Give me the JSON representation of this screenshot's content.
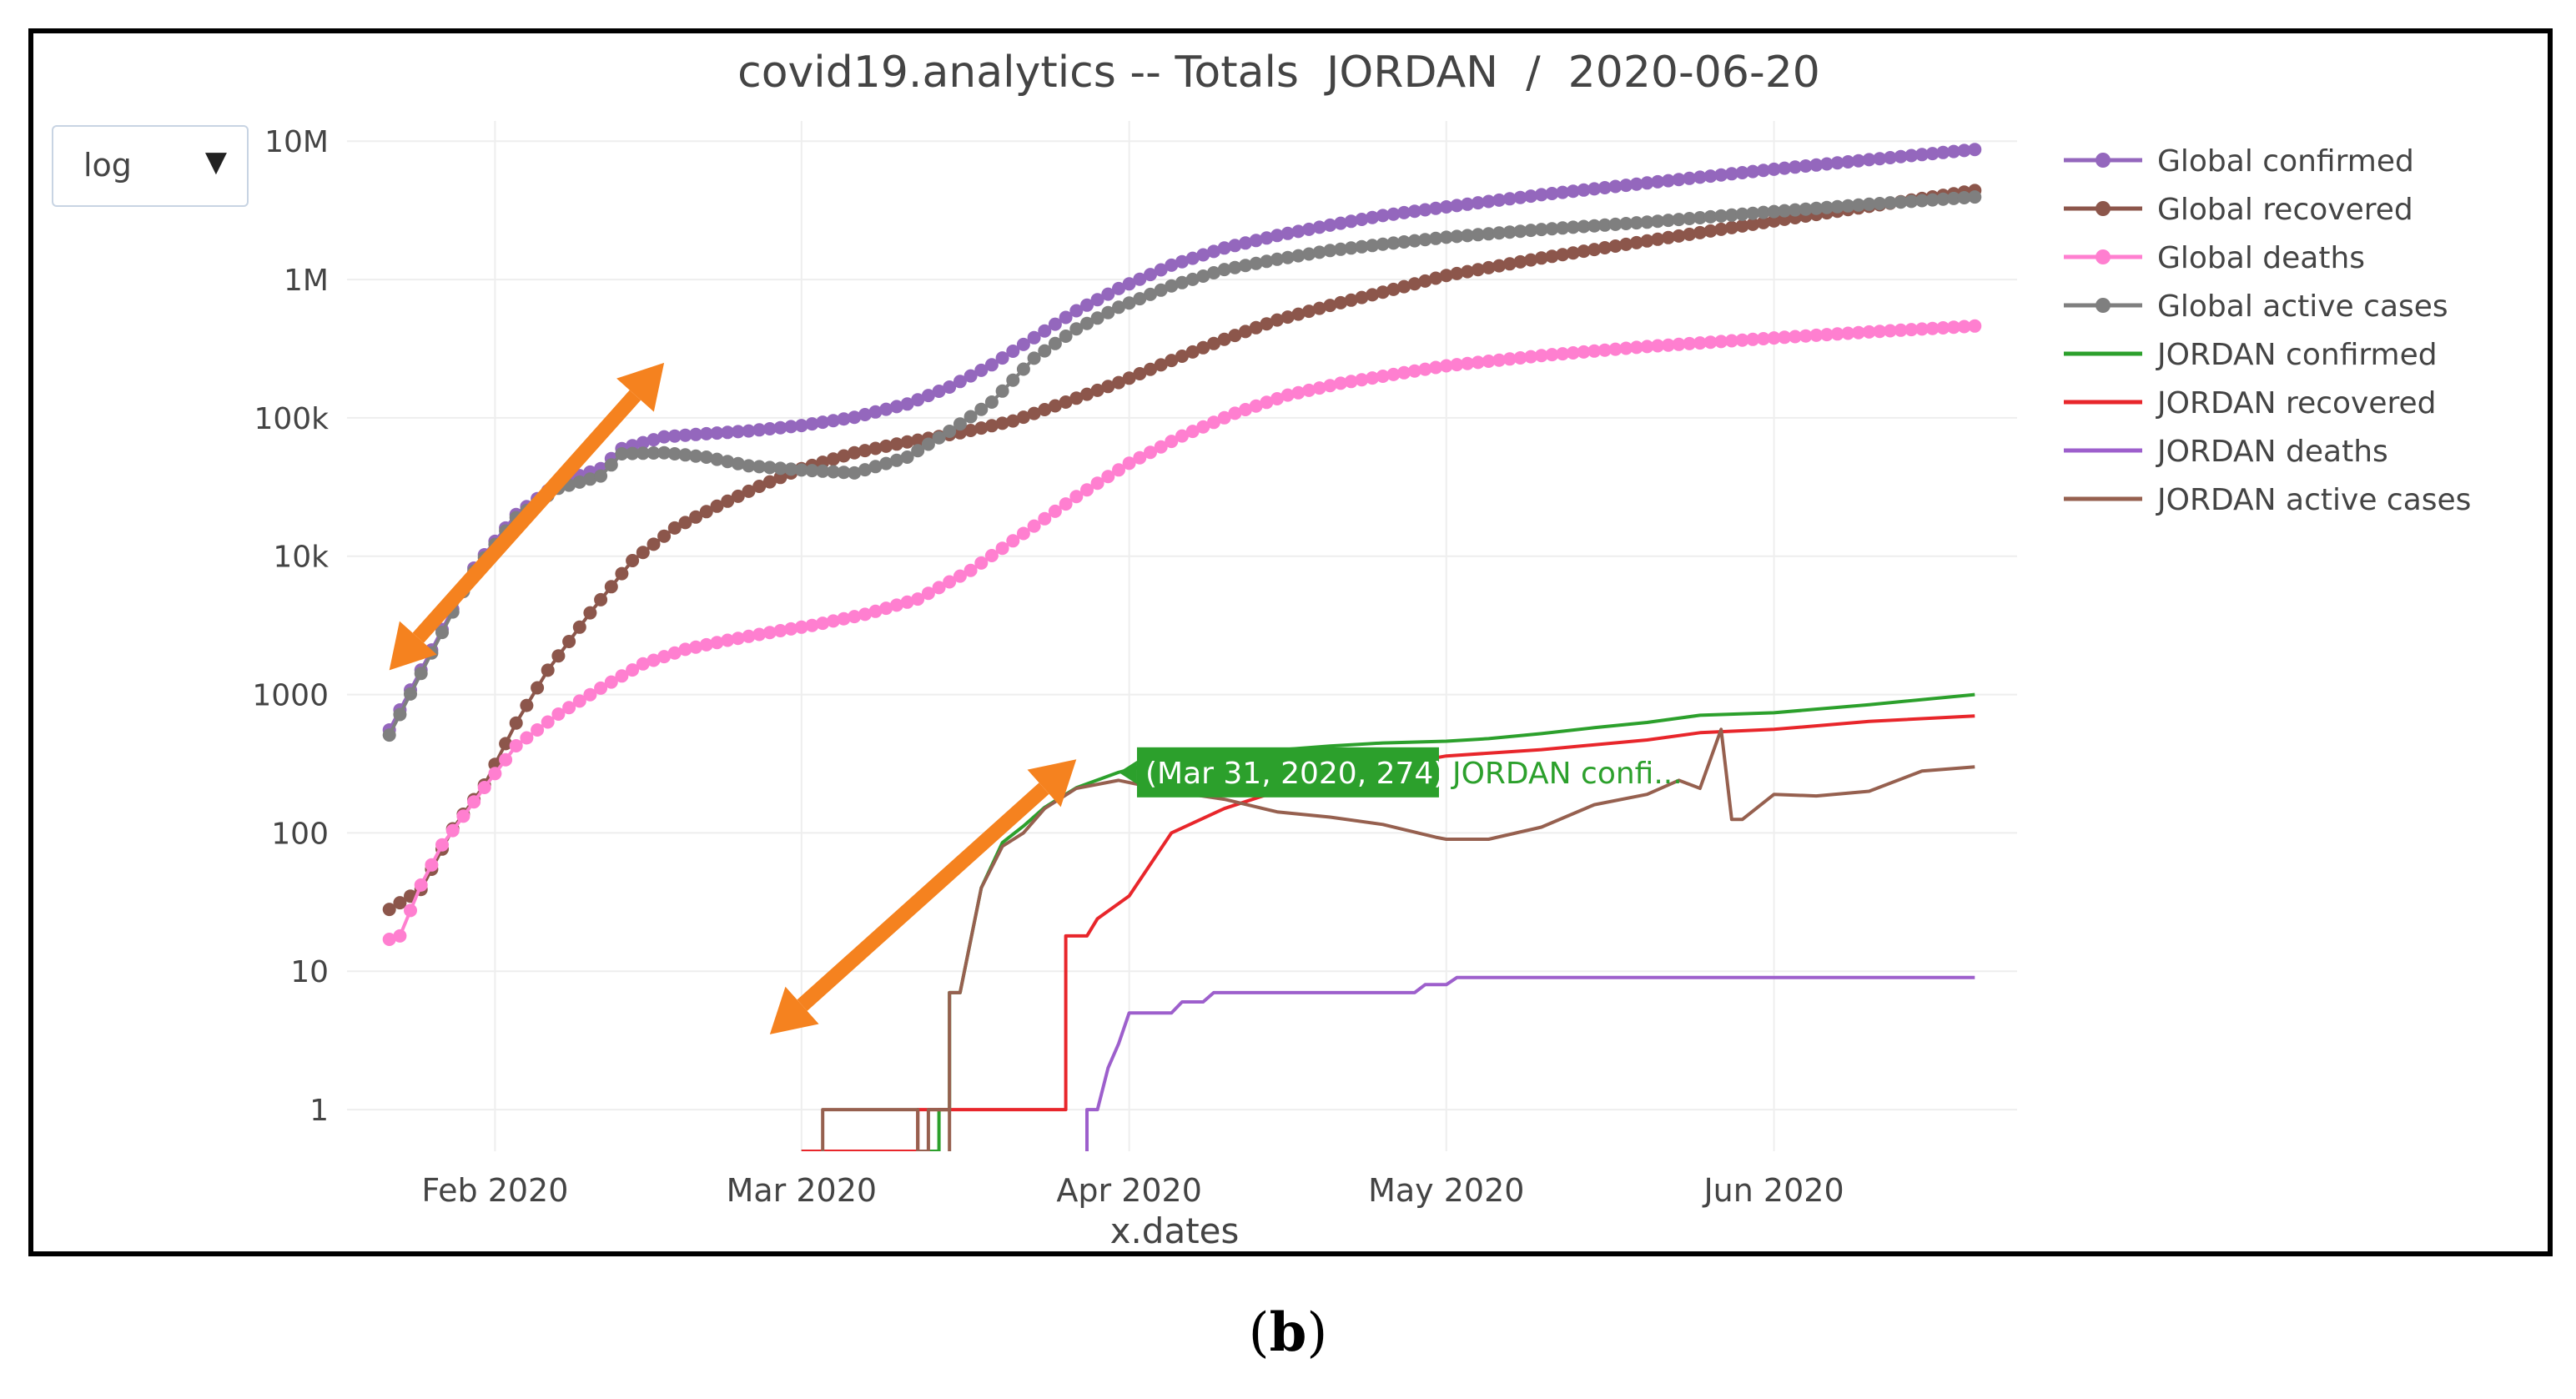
{
  "figure_label_open": "(",
  "figure_label": "b",
  "figure_label_close": ")",
  "scale_selector": {
    "selected": "log",
    "arrow": "▼"
  },
  "chart_data": {
    "type": "line",
    "title": "covid19.analytics -- Totals  JORDAN  /  2020-06-20",
    "xlabel": "x.dates",
    "ylabel": "",
    "yscale": "log",
    "grid": true,
    "legend_position": "top-right",
    "x_domain": [
      "2020-01-18",
      "2020-06-24"
    ],
    "y_range": [
      0.5,
      14000000
    ],
    "x_ticks": [
      {
        "date": "2020-02-01",
        "label": "Feb 2020"
      },
      {
        "date": "2020-03-01",
        "label": "Mar 2020"
      },
      {
        "date": "2020-04-01",
        "label": "Apr 2020"
      },
      {
        "date": "2020-05-01",
        "label": "May 2020"
      },
      {
        "date": "2020-06-01",
        "label": "Jun 2020"
      }
    ],
    "y_ticks": [
      {
        "value": 1,
        "label": "1"
      },
      {
        "value": 10,
        "label": "10"
      },
      {
        "value": 100,
        "label": "100"
      },
      {
        "value": 1000,
        "label": "1000"
      },
      {
        "value": 10000,
        "label": "10k"
      },
      {
        "value": 100000,
        "label": "100k"
      },
      {
        "value": 1000000,
        "label": "1M"
      },
      {
        "value": 10000000,
        "label": "10M"
      }
    ],
    "series": [
      {
        "name": "Global confirmed",
        "color": "#9467bd",
        "markers": true,
        "points": [
          [
            "2020-01-22",
            555
          ],
          [
            "2020-01-26",
            2100
          ],
          [
            "2020-01-30",
            8200
          ],
          [
            "2020-02-03",
            20000
          ],
          [
            "2020-02-07",
            34000
          ],
          [
            "2020-02-11",
            43000
          ],
          [
            "2020-02-13",
            60000
          ],
          [
            "2020-02-17",
            73000
          ],
          [
            "2020-02-21",
            76800
          ],
          [
            "2020-02-25",
            80400
          ],
          [
            "2020-03-01",
            88000
          ],
          [
            "2020-03-06",
            101000
          ],
          [
            "2020-03-11",
            126000
          ],
          [
            "2020-03-15",
            167000
          ],
          [
            "2020-03-19",
            242000
          ],
          [
            "2020-03-23",
            380000
          ],
          [
            "2020-03-27",
            595000
          ],
          [
            "2020-03-31",
            860000
          ],
          [
            "2020-04-05",
            1270000
          ],
          [
            "2020-04-10",
            1690000
          ],
          [
            "2020-04-15",
            2080000
          ],
          [
            "2020-04-20",
            2470000
          ],
          [
            "2020-04-25",
            2900000
          ],
          [
            "2020-05-01",
            3350000
          ],
          [
            "2020-05-10",
            4100000
          ],
          [
            "2020-05-20",
            4990000
          ],
          [
            "2020-06-01",
            6270000
          ],
          [
            "2020-06-10",
            7350000
          ],
          [
            "2020-06-20",
            8710000
          ]
        ]
      },
      {
        "name": "Global recovered",
        "color": "#8c564b",
        "markers": true,
        "points": [
          [
            "2020-01-22",
            28
          ],
          [
            "2020-01-25",
            39
          ],
          [
            "2020-01-28",
            107
          ],
          [
            "2020-01-31",
            222
          ],
          [
            "2020-02-03",
            623
          ],
          [
            "2020-02-06",
            1500
          ],
          [
            "2020-02-10",
            3900
          ],
          [
            "2020-02-14",
            9300
          ],
          [
            "2020-02-18",
            16000
          ],
          [
            "2020-02-22",
            23000
          ],
          [
            "2020-02-26",
            32000
          ],
          [
            "2020-03-01",
            43000
          ],
          [
            "2020-03-06",
            56000
          ],
          [
            "2020-03-11",
            67000
          ],
          [
            "2020-03-16",
            78000
          ],
          [
            "2020-03-21",
            95000
          ],
          [
            "2020-03-26",
            130000
          ],
          [
            "2020-03-31",
            180000
          ],
          [
            "2020-04-05",
            260000
          ],
          [
            "2020-04-10",
            370000
          ],
          [
            "2020-04-15",
            510000
          ],
          [
            "2020-04-20",
            650000
          ],
          [
            "2020-04-25",
            810000
          ],
          [
            "2020-05-01",
            1070000
          ],
          [
            "2020-05-10",
            1430000
          ],
          [
            "2020-05-20",
            1900000
          ],
          [
            "2020-06-01",
            2650000
          ],
          [
            "2020-06-10",
            3380000
          ],
          [
            "2020-06-20",
            4400000
          ]
        ]
      },
      {
        "name": "Global deaths",
        "color": "#ff7fd0",
        "markers": true,
        "points": [
          [
            "2020-01-22",
            17
          ],
          [
            "2020-01-23",
            18
          ],
          [
            "2020-01-25",
            42
          ],
          [
            "2020-01-27",
            82
          ],
          [
            "2020-01-29",
            132
          ],
          [
            "2020-01-31",
            213
          ],
          [
            "2020-02-03",
            426
          ],
          [
            "2020-02-07",
            722
          ],
          [
            "2020-02-11",
            1113
          ],
          [
            "2020-02-15",
            1666
          ],
          [
            "2020-02-19",
            2122
          ],
          [
            "2020-02-23",
            2469
          ],
          [
            "2020-02-27",
            2810
          ],
          [
            "2020-03-02",
            3160
          ],
          [
            "2020-03-07",
            3800
          ],
          [
            "2020-03-12",
            4900
          ],
          [
            "2020-03-17",
            7900
          ],
          [
            "2020-03-22",
            14600
          ],
          [
            "2020-03-27",
            27000
          ],
          [
            "2020-04-01",
            47000
          ],
          [
            "2020-04-06",
            74000
          ],
          [
            "2020-04-11",
            108000
          ],
          [
            "2020-04-16",
            146000
          ],
          [
            "2020-04-21",
            178000
          ],
          [
            "2020-04-26",
            206000
          ],
          [
            "2020-05-01",
            238000
          ],
          [
            "2020-05-10",
            282000
          ],
          [
            "2020-05-20",
            328000
          ],
          [
            "2020-06-01",
            378000
          ],
          [
            "2020-06-10",
            418000
          ],
          [
            "2020-06-20",
            461000
          ]
        ]
      },
      {
        "name": "Global active cases",
        "color": "#7f7f7f",
        "markers": true,
        "points": [
          [
            "2020-01-22",
            510
          ],
          [
            "2020-01-26",
            2000
          ],
          [
            "2020-01-30",
            7800
          ],
          [
            "2020-02-03",
            19000
          ],
          [
            "2020-02-07",
            31000
          ],
          [
            "2020-02-11",
            38000
          ],
          [
            "2020-02-13",
            55000
          ],
          [
            "2020-02-17",
            56000
          ],
          [
            "2020-02-21",
            52000
          ],
          [
            "2020-02-25",
            45000
          ],
          [
            "2020-03-01",
            42000
          ],
          [
            "2020-03-06",
            40000
          ],
          [
            "2020-03-11",
            52000
          ],
          [
            "2020-03-15",
            80000
          ],
          [
            "2020-03-19",
            130000
          ],
          [
            "2020-03-23",
            270000
          ],
          [
            "2020-03-27",
            440000
          ],
          [
            "2020-03-31",
            630000
          ],
          [
            "2020-04-05",
            900000
          ],
          [
            "2020-04-10",
            1180000
          ],
          [
            "2020-04-15",
            1400000
          ],
          [
            "2020-04-20",
            1620000
          ],
          [
            "2020-04-25",
            1800000
          ],
          [
            "2020-05-01",
            2020000
          ],
          [
            "2020-05-10",
            2300000
          ],
          [
            "2020-05-20",
            2600000
          ],
          [
            "2020-06-01",
            3100000
          ],
          [
            "2020-06-10",
            3500000
          ],
          [
            "2020-06-20",
            3950000
          ]
        ]
      },
      {
        "name": "JORDAN confirmed",
        "color": "#2ca02c",
        "markers": false,
        "points": [
          [
            "2020-03-01",
            0.5
          ],
          [
            "2020-03-14",
            0.5
          ],
          [
            "2020-03-14",
            1
          ],
          [
            "2020-03-15",
            1
          ],
          [
            "2020-03-15",
            7
          ],
          [
            "2020-03-16",
            7
          ],
          [
            "2020-03-18",
            40
          ],
          [
            "2020-03-20",
            85
          ],
          [
            "2020-03-22",
            112
          ],
          [
            "2020-03-24",
            153
          ],
          [
            "2020-03-27",
            212
          ],
          [
            "2020-03-31",
            274
          ],
          [
            "2020-04-05",
            345
          ],
          [
            "2020-04-10",
            372
          ],
          [
            "2020-04-15",
            397
          ],
          [
            "2020-04-20",
            425
          ],
          [
            "2020-04-25",
            447
          ],
          [
            "2020-05-01",
            460
          ],
          [
            "2020-05-05",
            480
          ],
          [
            "2020-05-10",
            522
          ],
          [
            "2020-05-15",
            576
          ],
          [
            "2020-05-20",
            629
          ],
          [
            "2020-05-25",
            708
          ],
          [
            "2020-06-01",
            739
          ],
          [
            "2020-06-10",
            845
          ],
          [
            "2020-06-20",
            1000
          ]
        ]
      },
      {
        "name": "JORDAN recovered",
        "color": "#e8262b",
        "markers": false,
        "points": [
          [
            "2020-03-01",
            0.5
          ],
          [
            "2020-03-12",
            0.5
          ],
          [
            "2020-03-12",
            1
          ],
          [
            "2020-03-26",
            1
          ],
          [
            "2020-03-26",
            18
          ],
          [
            "2020-03-28",
            18
          ],
          [
            "2020-03-29",
            24
          ],
          [
            "2020-04-01",
            35
          ],
          [
            "2020-04-05",
            100
          ],
          [
            "2020-04-10",
            150
          ],
          [
            "2020-04-15",
            200
          ],
          [
            "2020-04-20",
            260
          ],
          [
            "2020-04-25",
            300
          ],
          [
            "2020-05-01",
            360
          ],
          [
            "2020-05-10",
            400
          ],
          [
            "2020-05-20",
            470
          ],
          [
            "2020-05-25",
            530
          ],
          [
            "2020-06-01",
            560
          ],
          [
            "2020-06-10",
            640
          ],
          [
            "2020-06-20",
            700
          ]
        ]
      },
      {
        "name": "JORDAN deaths",
        "color": "#9d5fcc",
        "markers": false,
        "points": [
          [
            "2020-03-28",
            0.5
          ],
          [
            "2020-03-28",
            1
          ],
          [
            "2020-03-29",
            1
          ],
          [
            "2020-03-30",
            2
          ],
          [
            "2020-03-31",
            3
          ],
          [
            "2020-04-01",
            5
          ],
          [
            "2020-04-05",
            5
          ],
          [
            "2020-04-06",
            6
          ],
          [
            "2020-04-08",
            6
          ],
          [
            "2020-04-09",
            7
          ],
          [
            "2020-04-28",
            7
          ],
          [
            "2020-04-29",
            8
          ],
          [
            "2020-05-01",
            8
          ],
          [
            "2020-05-02",
            9
          ],
          [
            "2020-06-20",
            9
          ]
        ]
      },
      {
        "name": "JORDAN active cases",
        "color": "#96604f",
        "markers": false,
        "points": [
          [
            "2020-03-03",
            0.5
          ],
          [
            "2020-03-03",
            1
          ],
          [
            "2020-03-12",
            1
          ],
          [
            "2020-03-12",
            0.5
          ],
          [
            "2020-03-13",
            0.5
          ],
          [
            "2020-03-13",
            1
          ],
          [
            "2020-03-15",
            1
          ],
          [
            "2020-03-15",
            0.5
          ],
          [
            "2020-03-15",
            7
          ],
          [
            "2020-03-16",
            7
          ],
          [
            "2020-03-18",
            40
          ],
          [
            "2020-03-20",
            80
          ],
          [
            "2020-03-22",
            100
          ],
          [
            "2020-03-24",
            150
          ],
          [
            "2020-03-27",
            210
          ],
          [
            "2020-03-31",
            240
          ],
          [
            "2020-04-05",
            200
          ],
          [
            "2020-04-10",
            175
          ],
          [
            "2020-04-15",
            142
          ],
          [
            "2020-04-20",
            130
          ],
          [
            "2020-04-25",
            115
          ],
          [
            "2020-04-30",
            93
          ],
          [
            "2020-05-01",
            90
          ],
          [
            "2020-05-05",
            90
          ],
          [
            "2020-05-10",
            110
          ],
          [
            "2020-05-15",
            160
          ],
          [
            "2020-05-20",
            190
          ],
          [
            "2020-05-23",
            240
          ],
          [
            "2020-05-25",
            210
          ],
          [
            "2020-05-27",
            560
          ],
          [
            "2020-05-28",
            125
          ],
          [
            "2020-05-29",
            125
          ],
          [
            "2020-06-01",
            190
          ],
          [
            "2020-06-05",
            185
          ],
          [
            "2020-06-10",
            200
          ],
          [
            "2020-06-15",
            280
          ],
          [
            "2020-06-20",
            300
          ]
        ]
      }
    ],
    "tooltip": {
      "date": "2020-03-31",
      "value": 274,
      "label": "(Mar 31, 2020, 274)",
      "series_text": "JORDAN confi...",
      "color": "#2ca02c"
    },
    "annotations": [
      {
        "type": "double-arrow",
        "color": "#f5821f",
        "from": [
          "2020-01-22",
          1500
        ],
        "to": [
          "2020-02-17",
          250000
        ]
      },
      {
        "type": "double-arrow",
        "color": "#f5821f",
        "from": [
          "2020-02-27",
          3.5
        ],
        "to": [
          "2020-03-27",
          340
        ]
      }
    ]
  }
}
